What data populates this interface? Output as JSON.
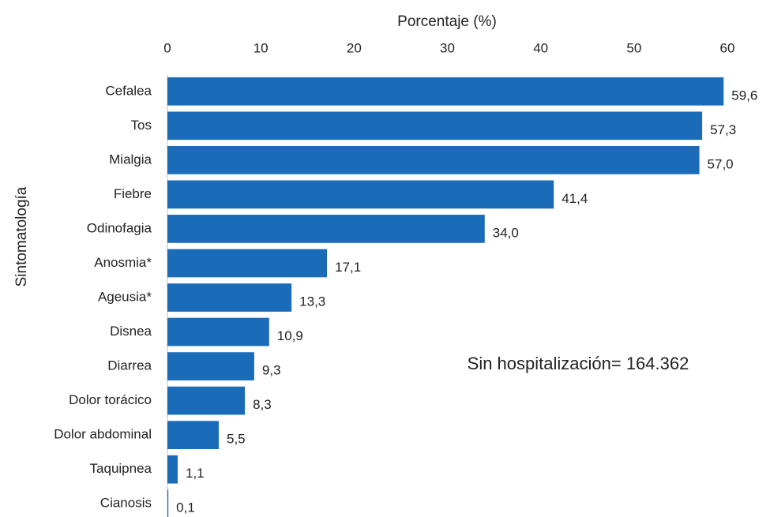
{
  "chart_data": {
    "type": "bar",
    "orientation": "horizontal",
    "x_label": "Porcentaje (%)",
    "y_label": "Sintomatología",
    "annotation": "Sin hospitalización= 164.362",
    "categories": [
      "Cefalea",
      "Tos",
      "Mialgia",
      "Fiebre",
      "Odinofagia",
      "Anosmia*",
      "Ageusia*",
      "Disnea",
      "Diarrea",
      "Dolor torácico",
      "Dolor abdominal",
      "Taquipnea",
      "Cianosis"
    ],
    "values": [
      59.6,
      57.3,
      57.0,
      41.4,
      34.0,
      17.1,
      13.3,
      10.9,
      9.3,
      8.3,
      5.5,
      1.1,
      0.1
    ],
    "value_labels": [
      "59,6",
      "57,3",
      "57,0",
      "41,4",
      "34,0",
      "17,1",
      "13,3",
      "10,9",
      "9,3",
      "8,3",
      "5,5",
      "1,1",
      "0,1"
    ],
    "color": "#1a6bb8",
    "xlim": [
      0,
      60
    ],
    "xticks": [
      0,
      10,
      20,
      30,
      40,
      50,
      60
    ],
    "grid": false
  }
}
